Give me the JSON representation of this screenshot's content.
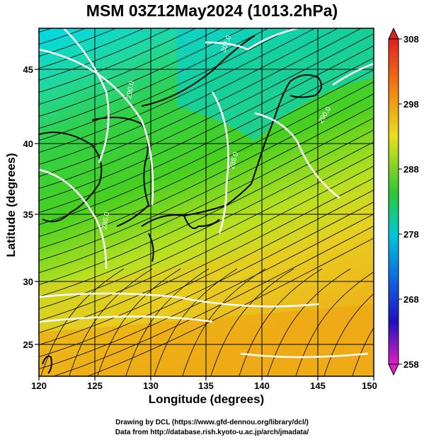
{
  "title": "MSM 03Z12May2024 (1013.2hPa)",
  "xlabel": "Longitude (degrees)",
  "ylabel": "Latitude  (degrees)",
  "credits": [
    "Drawing by DCL (https://www.gfd-dennou.org/library/dcl/)",
    "Data from http://database.rish.kyoto-u.ac.jp/arch/jmadata/"
  ],
  "x_ticks": [
    "120",
    "125",
    "130",
    "135",
    "140",
    "145",
    "150"
  ],
  "y_ticks": [
    "25",
    "30",
    "35",
    "40",
    "45"
  ],
  "colorbar_ticks": [
    "308",
    "298",
    "288",
    "278",
    "268",
    "258"
  ],
  "contour_labels": [
    "302.0",
    "290.0",
    "288.0",
    "286.0",
    "290.0"
  ],
  "map": {
    "lon_range": [
      120,
      150
    ],
    "lat_range": [
      22.6,
      48
    ],
    "colorbar_range": [
      258,
      308
    ],
    "colors": {
      "cold": "#00c0e0",
      "cool": "#30d060",
      "mid": "#40d020",
      "warm": "#e0e020",
      "hot": "#f0a010",
      "land_outline": "#000000",
      "contour": "#ffffff"
    }
  }
}
